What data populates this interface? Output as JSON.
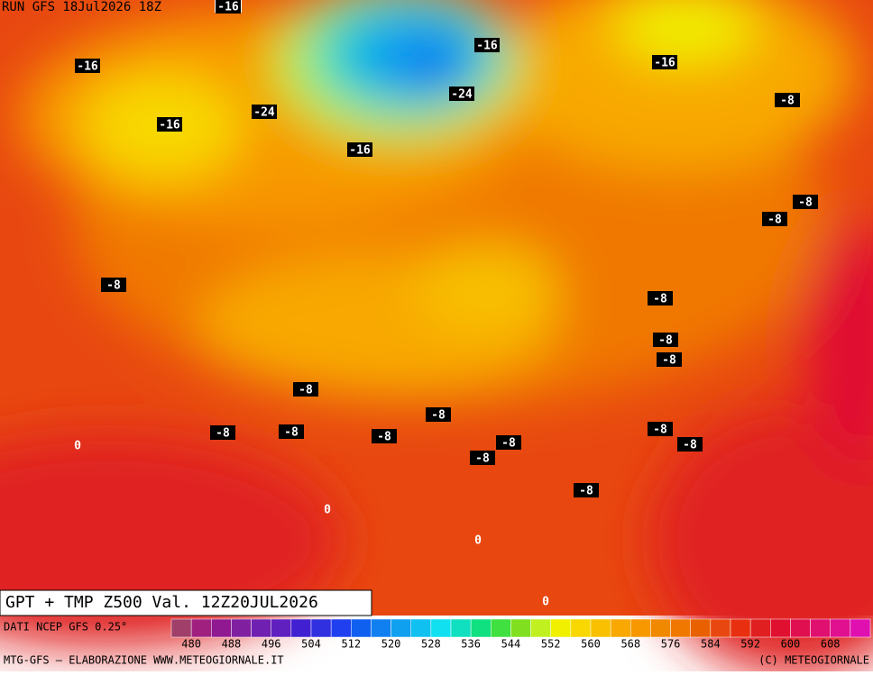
{
  "header": {
    "run": "RUN GFS 18Jul2026 18Z",
    "title": "GPT + TMP Z500 Val. 12Z20JUL2026"
  },
  "footer": {
    "source": "DATI NCEP GFS 0.25°",
    "credits": "MTG-GFS — ELABORAZIONE WWW.METEOGIORNALE.IT",
    "copyright": "(C) METEOGIORNALE"
  },
  "colorbar": {
    "colors": [
      "#a0406a",
      "#a02080",
      "#901890",
      "#8020a0",
      "#7020b0",
      "#6020c0",
      "#4020d0",
      "#3030e0",
      "#2040f0",
      "#1060f0",
      "#1080f0",
      "#10a0f0",
      "#10c0f0",
      "#10e0f0",
      "#10e0c0",
      "#10e080",
      "#40e040",
      "#80e020",
      "#c0f020",
      "#f0f000",
      "#f8d800",
      "#f8c000",
      "#f8a800",
      "#f89800",
      "#f08800",
      "#f07800",
      "#e86000",
      "#e84810",
      "#e83010",
      "#e02020",
      "#e01030",
      "#e01050",
      "#e01070",
      "#e01090",
      "#e010b0"
    ],
    "labels": [
      480,
      488,
      496,
      504,
      512,
      520,
      528,
      536,
      544,
      552,
      560,
      568,
      576,
      584,
      592,
      600,
      608
    ]
  },
  "contour_labels": [
    "-16",
    "-16",
    "-16",
    "-24",
    "-16",
    "-24",
    "-16",
    "-16",
    "-8",
    "-8",
    "-8",
    "-8",
    "-8",
    "-8",
    "-8",
    "-8",
    "-8",
    "-8",
    "-8",
    "-8",
    "-8",
    "-8",
    "-8",
    "-8",
    "-8",
    "0",
    "0",
    "0",
    "0"
  ]
}
